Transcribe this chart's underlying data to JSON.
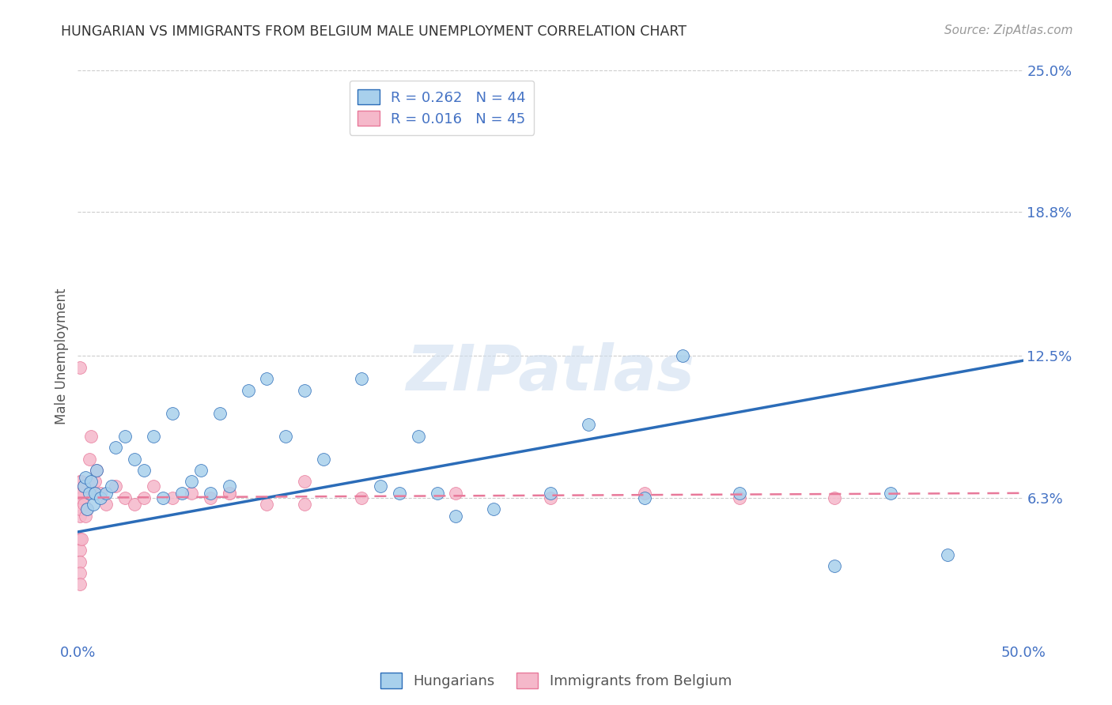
{
  "title": "HUNGARIAN VS IMMIGRANTS FROM BELGIUM MALE UNEMPLOYMENT CORRELATION CHART",
  "source": "Source: ZipAtlas.com",
  "ylabel": "Male Unemployment",
  "xlim": [
    0.0,
    0.5
  ],
  "ylim": [
    0.0,
    0.25
  ],
  "ytick_labels": [
    "6.3%",
    "12.5%",
    "18.8%",
    "25.0%"
  ],
  "ytick_values": [
    0.063,
    0.125,
    0.188,
    0.25
  ],
  "xtick_labels": [
    "0.0%",
    "50.0%"
  ],
  "xtick_values": [
    0.0,
    0.1,
    0.2,
    0.3,
    0.4,
    0.5
  ],
  "legend1_label": "R = 0.262   N = 44",
  "legend2_label": "R = 0.016   N = 45",
  "legend_group1": "Hungarians",
  "legend_group2": "Immigrants from Belgium",
  "color_blue": "#A8D0EC",
  "color_pink": "#F5B8CA",
  "line_blue": "#2B6CB8",
  "line_pink": "#E8799A",
  "grid_color": "#CCCCCC",
  "watermark_text": "ZIPatlas",
  "blue_R": 0.262,
  "blue_N": 44,
  "pink_R": 0.016,
  "pink_N": 45,
  "blue_line_start_y": 0.048,
  "blue_line_end_y": 0.123,
  "pink_line_start_y": 0.063,
  "pink_line_end_y": 0.065,
  "blue_x": [
    0.003,
    0.004,
    0.005,
    0.006,
    0.007,
    0.008,
    0.009,
    0.01,
    0.012,
    0.015,
    0.018,
    0.02,
    0.025,
    0.03,
    0.035,
    0.04,
    0.045,
    0.05,
    0.055,
    0.06,
    0.065,
    0.07,
    0.075,
    0.08,
    0.09,
    0.1,
    0.11,
    0.12,
    0.13,
    0.15,
    0.16,
    0.17,
    0.18,
    0.19,
    0.2,
    0.22,
    0.25,
    0.27,
    0.3,
    0.32,
    0.35,
    0.4,
    0.43,
    0.46
  ],
  "blue_y": [
    0.068,
    0.072,
    0.058,
    0.065,
    0.07,
    0.06,
    0.065,
    0.075,
    0.063,
    0.065,
    0.068,
    0.085,
    0.09,
    0.08,
    0.075,
    0.09,
    0.063,
    0.1,
    0.065,
    0.07,
    0.075,
    0.065,
    0.1,
    0.068,
    0.11,
    0.115,
    0.09,
    0.11,
    0.08,
    0.115,
    0.068,
    0.065,
    0.09,
    0.065,
    0.055,
    0.058,
    0.065,
    0.095,
    0.063,
    0.125,
    0.065,
    0.033,
    0.065,
    0.038
  ],
  "pink_x": [
    0.001,
    0.001,
    0.001,
    0.001,
    0.001,
    0.001,
    0.001,
    0.001,
    0.001,
    0.001,
    0.001,
    0.002,
    0.002,
    0.002,
    0.002,
    0.003,
    0.003,
    0.004,
    0.005,
    0.006,
    0.007,
    0.008,
    0.009,
    0.01,
    0.012,
    0.015,
    0.02,
    0.025,
    0.03,
    0.035,
    0.04,
    0.05,
    0.06,
    0.07,
    0.08,
    0.1,
    0.12,
    0.15,
    0.2,
    0.25,
    0.3,
    0.35,
    0.4,
    0.12,
    0.08
  ],
  "pink_y": [
    0.12,
    0.065,
    0.07,
    0.055,
    0.045,
    0.04,
    0.035,
    0.03,
    0.025,
    0.063,
    0.058,
    0.063,
    0.07,
    0.065,
    0.045,
    0.068,
    0.06,
    0.055,
    0.058,
    0.08,
    0.09,
    0.065,
    0.07,
    0.075,
    0.065,
    0.06,
    0.068,
    0.063,
    0.06,
    0.063,
    0.068,
    0.063,
    0.065,
    0.063,
    0.065,
    0.06,
    0.07,
    0.063,
    0.065,
    0.063,
    0.065,
    0.063,
    0.063,
    0.06,
    0.065
  ]
}
